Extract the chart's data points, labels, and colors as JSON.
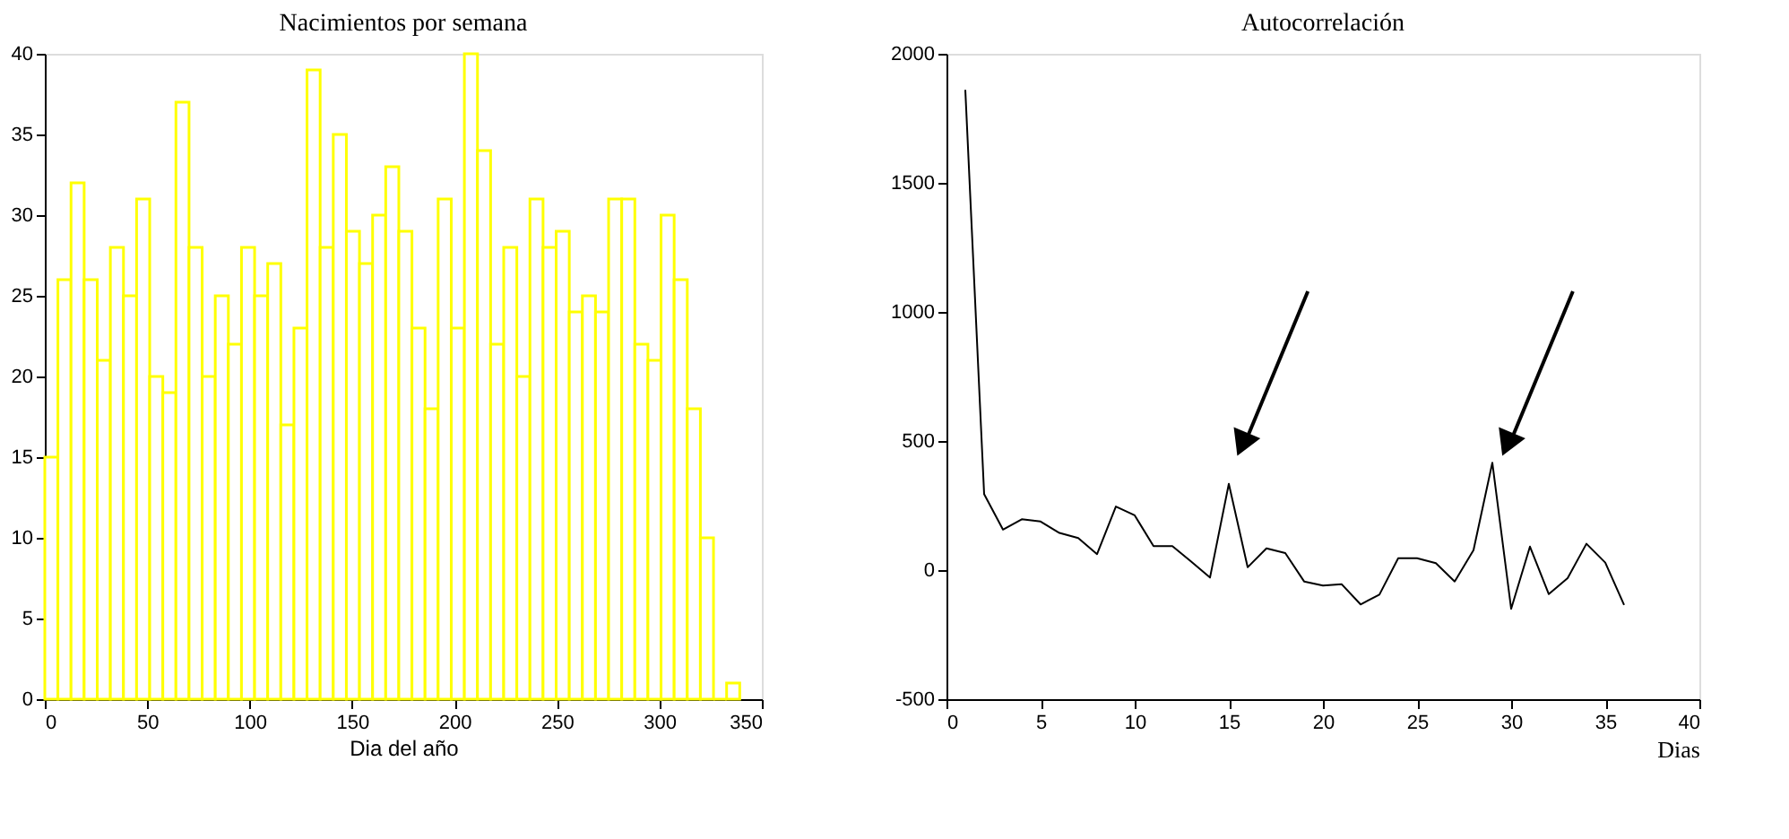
{
  "chart_data": [
    {
      "type": "histogram",
      "title": "Nacimientos por semana",
      "xlabel": "Dia del año",
      "color": "#ffff00",
      "bins": [
        0,
        6.4,
        12.8,
        19.2,
        25.6,
        32,
        38.4,
        44.8,
        51.2,
        57.6,
        64,
        70.4,
        76.8,
        83.2,
        89.6,
        96,
        102.4,
        108.8,
        115.2,
        121.6,
        128,
        134.4,
        140.8,
        147.2,
        153.6,
        160,
        166.4,
        172.8,
        179.2,
        185.6,
        192,
        198.4,
        204.8,
        211.2,
        217.6,
        224,
        230.4,
        236.8,
        243.2,
        249.6,
        256,
        262.4,
        268.8,
        275.2,
        281.6,
        288,
        294.4,
        300.8,
        307.2,
        313.6,
        320,
        326.4,
        332.8,
        339.2
      ],
      "values": [
        15,
        26,
        32,
        26,
        21,
        28,
        25,
        31,
        20,
        19,
        37,
        28,
        20,
        25,
        22,
        28,
        25,
        27,
        17,
        23,
        39,
        28,
        35,
        29,
        27,
        30,
        33,
        29,
        23,
        18,
        31,
        23,
        40,
        34,
        22,
        28,
        20,
        31,
        28,
        29,
        24,
        25,
        24,
        31,
        31,
        22,
        21,
        30,
        26,
        18,
        10,
        0,
        1
      ],
      "xlim": [
        0,
        350
      ],
      "xticks": [
        0,
        50,
        100,
        150,
        200,
        250,
        300,
        350
      ],
      "ylim": [
        0,
        40
      ],
      "yticks": [
        0,
        5,
        10,
        15,
        20,
        25,
        30,
        35,
        40
      ],
      "grid": false
    },
    {
      "type": "line",
      "title": "Autocorrelación",
      "xlabel": "Dias",
      "color": "#000000",
      "marker": "none",
      "x": [
        1,
        2,
        3,
        4,
        5,
        6,
        7,
        8,
        9,
        10,
        11,
        12,
        13,
        14,
        15,
        16,
        17,
        18,
        19,
        20,
        21,
        22,
        23,
        24,
        25,
        26,
        27,
        28,
        29,
        30,
        31,
        32,
        33,
        34,
        35,
        36
      ],
      "values": [
        1860,
        294,
        157,
        197,
        188,
        144,
        124,
        62,
        246,
        212,
        93,
        93,
        33,
        -29,
        334,
        11,
        84,
        66,
        -44,
        -60,
        -55,
        -133,
        -95,
        46,
        46,
        27,
        -44,
        77,
        416,
        -150,
        91,
        -93,
        -31,
        102,
        29,
        -135
      ],
      "xlim": [
        0,
        40
      ],
      "xticks": [
        0,
        5,
        10,
        15,
        20,
        25,
        30,
        35,
        40
      ],
      "ylim": [
        -500,
        2000
      ],
      "yticks": [
        -500,
        0,
        500,
        1000,
        1500,
        2000
      ],
      "grid": false
    }
  ]
}
